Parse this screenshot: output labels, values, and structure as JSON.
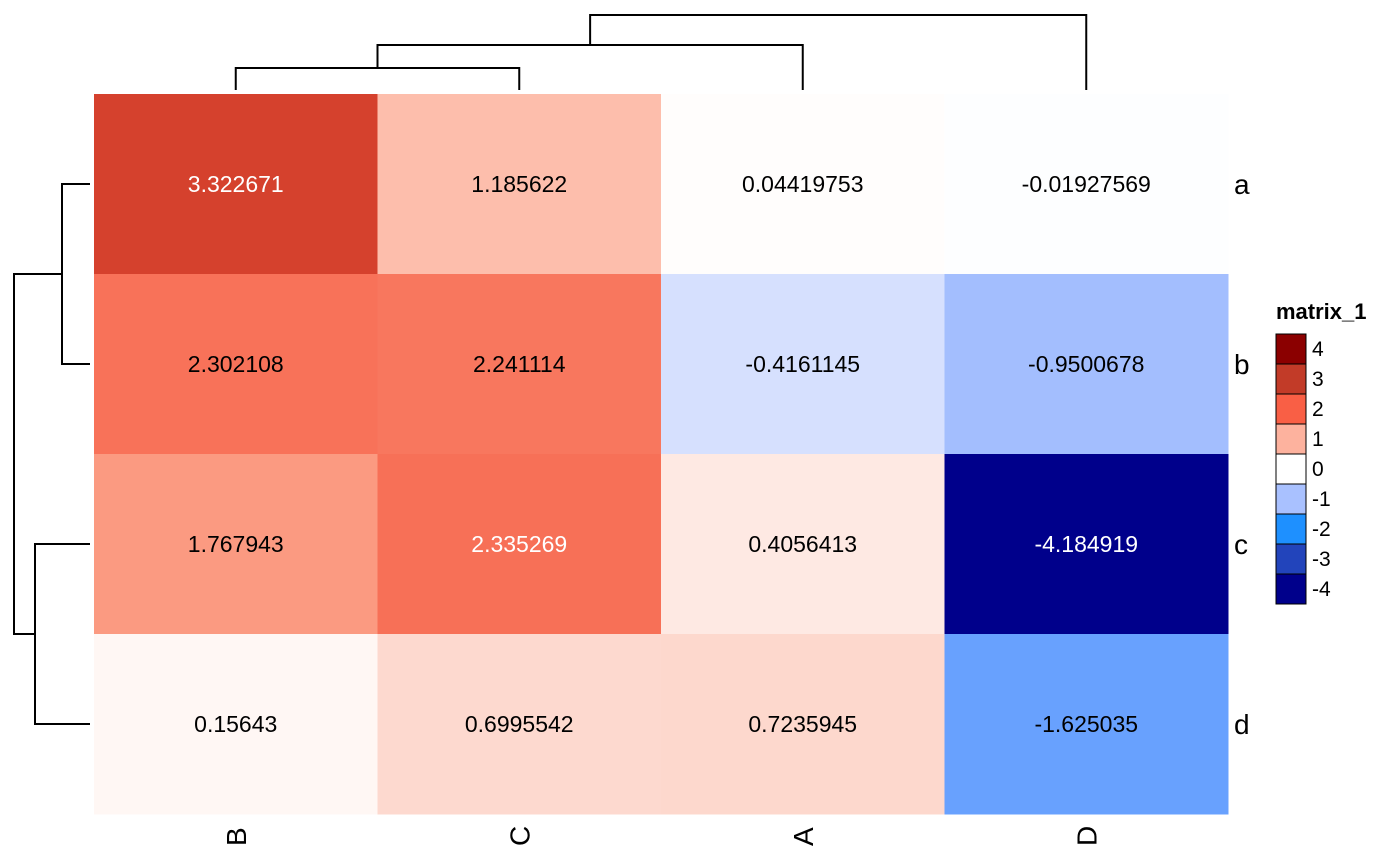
{
  "chart_data": {
    "type": "heatmap",
    "rows": [
      "a",
      "b",
      "c",
      "d"
    ],
    "columns": [
      "B",
      "C",
      "A",
      "D"
    ],
    "values": [
      [
        3.322671,
        1.185622,
        0.04419753,
        -0.01927569
      ],
      [
        2.302108,
        2.241114,
        -0.4161145,
        -0.9500678
      ],
      [
        1.767943,
        2.335269,
        0.4056413,
        -4.184919
      ],
      [
        0.15643,
        0.6995542,
        0.7235945,
        -1.625035
      ]
    ],
    "value_labels": [
      [
        "3.322671",
        "1.185622",
        "0.04419753",
        "-0.01927569"
      ],
      [
        "2.302108",
        "2.241114",
        "-0.4161145",
        "-0.9500678"
      ],
      [
        "1.767943",
        "2.335269",
        "0.4056413",
        "-4.184919"
      ],
      [
        "0.15643",
        "0.6995542",
        "0.7235945",
        "-1.625035"
      ]
    ],
    "legend": {
      "title": "matrix_1",
      "ticks": [
        "4",
        "3",
        "2",
        "1",
        "0",
        "-1",
        "-2",
        "-3",
        "-4"
      ],
      "colors": [
        "#8b0000",
        "#c23b28",
        "#f95f45",
        "#fdb29e",
        "#ffffff",
        "#a9c1ff",
        "#1e90ff",
        "#2244bb",
        "#00008b"
      ]
    },
    "color_scale": {
      "negative": [
        "#ffffff",
        "#b0c4fe",
        "#6aa3ff",
        "#3a6ee8",
        "#1533bf",
        "#00008b"
      ],
      "positive": [
        "#ffffff",
        "#fdd4c8",
        "#fca68e",
        "#f76b52",
        "#dc4530",
        "#af2a1a"
      ]
    },
    "column_dendrogram": "((B,C),A),D",
    "row_dendrogram": "(a,b),(c,d)"
  }
}
